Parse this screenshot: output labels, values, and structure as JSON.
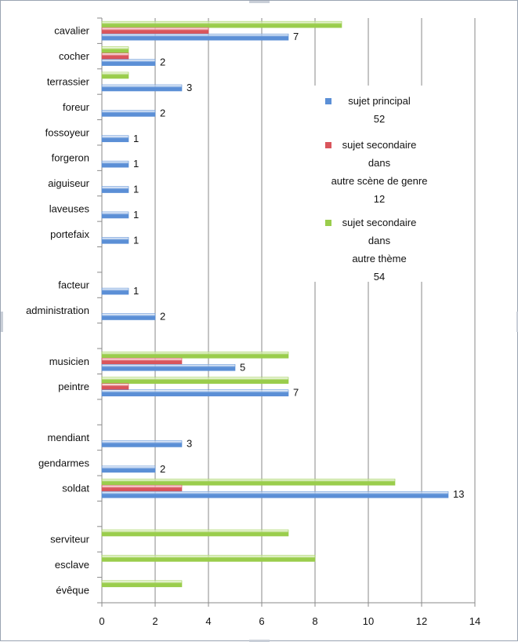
{
  "chart_data": {
    "type": "bar",
    "orientation": "horizontal",
    "grid": true,
    "legend_position": "right",
    "xlim": [
      0,
      14
    ],
    "x_ticks": [
      "0",
      "2",
      "4",
      "6",
      "8",
      "10",
      "12",
      "14"
    ],
    "series": [
      {
        "key": "principal",
        "color": "#5b8fd6"
      },
      {
        "key": "secondaire_genre",
        "color": "#d9555c"
      },
      {
        "key": "secondaire_theme",
        "color": "#9acd4c"
      }
    ],
    "categories": [
      {
        "label": "cavalier",
        "principal": 7,
        "secondaire_genre": 4,
        "secondaire_theme": 9,
        "data_label": "7"
      },
      {
        "label": "cocher",
        "principal": 2,
        "secondaire_genre": 1,
        "secondaire_theme": 1,
        "data_label": "2"
      },
      {
        "label": "terrassier",
        "principal": 3,
        "secondaire_theme": 1,
        "data_label": "3"
      },
      {
        "label": "foreur",
        "principal": 2,
        "data_label": "2"
      },
      {
        "label": "fossoyeur",
        "principal": 1,
        "data_label": "1"
      },
      {
        "label": "forgeron",
        "principal": 1,
        "data_label": "1"
      },
      {
        "label": "aiguiseur",
        "principal": 1,
        "data_label": "1"
      },
      {
        "label": "laveuses",
        "principal": 1,
        "data_label": "1"
      },
      {
        "label": "portefaix",
        "principal": 1,
        "data_label": "1"
      },
      {
        "label": ""
      },
      {
        "label": "facteur",
        "principal": 1,
        "data_label": "1"
      },
      {
        "label": "administration",
        "principal": 2,
        "data_label": "2"
      },
      {
        "label": ""
      },
      {
        "label": "musicien",
        "principal": 5,
        "secondaire_genre": 3,
        "secondaire_theme": 7,
        "data_label": "5"
      },
      {
        "label": "peintre",
        "principal": 7,
        "secondaire_genre": 1,
        "secondaire_theme": 7,
        "data_label": "7"
      },
      {
        "label": ""
      },
      {
        "label": "mendiant",
        "principal": 3,
        "data_label": "3"
      },
      {
        "label": "gendarmes",
        "principal": 2,
        "data_label": "2"
      },
      {
        "label": "soldat",
        "principal": 13,
        "secondaire_genre": 3,
        "secondaire_theme": 11,
        "data_label": "13"
      },
      {
        "label": ""
      },
      {
        "label": "serviteur",
        "secondaire_theme": 7
      },
      {
        "label": "esclave",
        "secondaire_theme": 8
      },
      {
        "label": "évêque",
        "secondaire_theme": 3
      }
    ],
    "legend": [
      {
        "series": "principal",
        "lines": [
          "sujet principal",
          "52"
        ]
      },
      {
        "series": "secondaire_genre",
        "lines": [
          "sujet secondaire",
          "dans",
          "autre scène de genre",
          "12"
        ]
      },
      {
        "series": "secondaire_theme",
        "lines": [
          "sujet secondaire",
          "dans",
          "autre thème",
          "54"
        ]
      }
    ]
  }
}
